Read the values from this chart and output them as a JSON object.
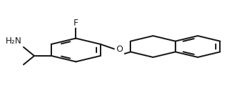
{
  "background": "#ffffff",
  "line_color": "#1a1a1a",
  "text_color": "#1a1a1a",
  "line_width": 1.5,
  "fig_width": 3.46,
  "fig_height": 1.45,
  "dpi": 100,
  "label_F": "F",
  "label_O": "O",
  "label_NH2": "H₂N",
  "font_size": 9
}
